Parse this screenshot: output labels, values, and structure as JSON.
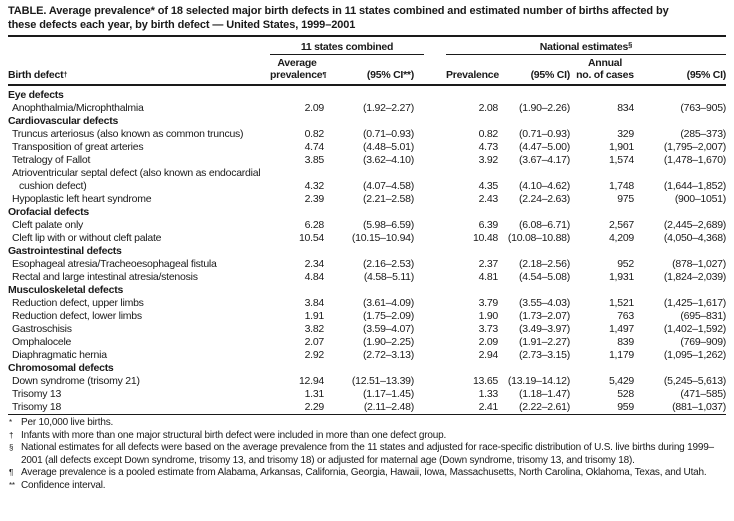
{
  "title_lines": [
    "TABLE. Average prevalence* of 18 selected major birth defects in 11 states combined and estimated number of births affected by",
    "these defects each year, by birth defect — United States, 1999–2001"
  ],
  "header": {
    "group_11_states": {
      "label": "11 states combined"
    },
    "group_national": {
      "label": "National estimates",
      "sup": "§"
    },
    "birth_defect": {
      "label": "Birth defect",
      "sup": "†"
    },
    "avg_prevalence": {
      "line1": "Average",
      "line2": "prevalence",
      "sup": "¶"
    },
    "avg_ci": "(95% CI**)",
    "prevalence": "Prevalence",
    "nat_ci": "(95% CI)",
    "annual_cases": {
      "line1": "Annual",
      "line2": "no. of cases"
    },
    "annual_ci": "(95% CI)"
  },
  "table": {
    "sections": [
      {
        "name": "Eye defects",
        "rows": [
          {
            "birth_defect": "Anophthalmia/Microphthalmia",
            "avg_prevalence": "2.09",
            "avg_ci": "(1.92–2.27)",
            "nat_prevalence": "2.08",
            "nat_ci": "(1.90–2.26)",
            "annual_cases": "834",
            "annual_ci": "(763–905)"
          }
        ]
      },
      {
        "name": "Cardiovascular defects",
        "rows": [
          {
            "birth_defect": "Truncus arteriosus (also known as common truncus)",
            "avg_prevalence": "0.82",
            "avg_ci": "(0.71–0.93)",
            "nat_prevalence": "0.82",
            "nat_ci": "(0.71–0.93)",
            "annual_cases": "329",
            "annual_ci": "(285–373)"
          },
          {
            "birth_defect": "Transposition of great arteries",
            "avg_prevalence": "4.74",
            "avg_ci": "(4.48–5.01)",
            "nat_prevalence": "4.73",
            "nat_ci": "(4.47–5.00)",
            "annual_cases": "1,901",
            "annual_ci": "(1,795–2,007)"
          },
          {
            "birth_defect": "Tetralogy of Fallot",
            "avg_prevalence": "3.85",
            "avg_ci": "(3.62–4.10)",
            "nat_prevalence": "3.92",
            "nat_ci": "(3.67–4.17)",
            "annual_cases": "1,574",
            "annual_ci": "(1,478–1,670)"
          },
          {
            "birth_defect": "Atrioventricular septal defect (also known as endocardial cushion defect)",
            "avg_prevalence": "4.32",
            "avg_ci": "(4.07–4.58)",
            "nat_prevalence": "4.35",
            "nat_ci": "(4.10–4.62)",
            "annual_cases": "1,748",
            "annual_ci": "(1,644–1,852)"
          },
          {
            "birth_defect": "Hypoplastic left heart syndrome",
            "avg_prevalence": "2.39",
            "avg_ci": "(2.21–2.58)",
            "nat_prevalence": "2.43",
            "nat_ci": "(2.24–2.63)",
            "annual_cases": "975",
            "annual_ci": "(900–1051)"
          }
        ]
      },
      {
        "name": "Orofacial defects",
        "rows": [
          {
            "birth_defect": "Cleft palate only",
            "avg_prevalence": "6.28",
            "avg_ci": "(5.98–6.59)",
            "nat_prevalence": "6.39",
            "nat_ci": "(6.08–6.71)",
            "annual_cases": "2,567",
            "annual_ci": "(2,445–2,689)"
          },
          {
            "birth_defect": "Cleft lip with or without cleft palate",
            "avg_prevalence": "10.54",
            "avg_ci": "(10.15–10.94)",
            "nat_prevalence": "10.48",
            "nat_ci": "(10.08–10.88)",
            "annual_cases": "4,209",
            "annual_ci": "(4,050–4,368)"
          }
        ]
      },
      {
        "name": "Gastrointestinal defects",
        "rows": [
          {
            "birth_defect": "Esophageal atresia/Tracheoesophageal fistula",
            "avg_prevalence": "2.34",
            "avg_ci": "(2.16–2.53)",
            "nat_prevalence": "2.37",
            "nat_ci": "(2.18–2.56)",
            "annual_cases": "952",
            "annual_ci": "(878–1,027)"
          },
          {
            "birth_defect": "Rectal and large intestinal atresia/stenosis",
            "avg_prevalence": "4.84",
            "avg_ci": "(4.58–5.11)",
            "nat_prevalence": "4.81",
            "nat_ci": "(4.54–5.08)",
            "annual_cases": "1,931",
            "annual_ci": "(1,824–2,039)"
          }
        ]
      },
      {
        "name": "Musculoskeletal defects",
        "rows": [
          {
            "birth_defect": "Reduction defect, upper limbs",
            "avg_prevalence": "3.84",
            "avg_ci": "(3.61–4.09)",
            "nat_prevalence": "3.79",
            "nat_ci": "(3.55–4.03)",
            "annual_cases": "1,521",
            "annual_ci": "(1,425–1,617)"
          },
          {
            "birth_defect": "Reduction defect, lower limbs",
            "avg_prevalence": "1.91",
            "avg_ci": "(1.75–2.09)",
            "nat_prevalence": "1.90",
            "nat_ci": "(1.73–2.07)",
            "annual_cases": "763",
            "annual_ci": "(695–831)"
          },
          {
            "birth_defect": "Gastroschisis",
            "avg_prevalence": "3.82",
            "avg_ci": "(3.59–4.07)",
            "nat_prevalence": "3.73",
            "nat_ci": "(3.49–3.97)",
            "annual_cases": "1,497",
            "annual_ci": "(1,402–1,592)"
          },
          {
            "birth_defect": "Omphalocele",
            "avg_prevalence": "2.07",
            "avg_ci": "(1.90–2.25)",
            "nat_prevalence": "2.09",
            "nat_ci": "(1.91–2.27)",
            "annual_cases": "839",
            "annual_ci": "(769–909)"
          },
          {
            "birth_defect": "Diaphragmatic hernia",
            "avg_prevalence": "2.92",
            "avg_ci": "(2.72–3.13)",
            "nat_prevalence": "2.94",
            "nat_ci": "(2.73–3.15)",
            "annual_cases": "1,179",
            "annual_ci": "(1,095–1,262)"
          }
        ]
      },
      {
        "name": "Chromosomal defects",
        "rows": [
          {
            "birth_defect": "Down syndrome (trisomy 21)",
            "avg_prevalence": "12.94",
            "avg_ci": "(12.51–13.39)",
            "nat_prevalence": "13.65",
            "nat_ci": "(13.19–14.12)",
            "annual_cases": "5,429",
            "annual_ci": "(5,245–5,613)"
          },
          {
            "birth_defect": "Trisomy 13",
            "avg_prevalence": "1.31",
            "avg_ci": "(1.17–1.45)",
            "nat_prevalence": "1.33",
            "nat_ci": "(1.18–1.47)",
            "annual_cases": "528",
            "annual_ci": "(471–585)"
          },
          {
            "birth_defect": "Trisomy 18",
            "avg_prevalence": "2.29",
            "avg_ci": "(2.11–2.48)",
            "nat_prevalence": "2.41",
            "nat_ci": "(2.22–2.61)",
            "annual_cases": "959",
            "annual_ci": "(881–1,037)"
          }
        ]
      }
    ]
  },
  "footnotes": [
    {
      "symbol": "*",
      "text": "Per 10,000 live births."
    },
    {
      "symbol": "†",
      "text": "Infants with more than one major structural birth defect were included in more than one defect group."
    },
    {
      "symbol": "§",
      "text": "National estimates for all defects were based on the average prevalence from the 11 states and adjusted for race-specific distribution of U.S. live births during 1999–2001 (all defects except Down syndrome, trisomy 13, and trisomy 18) or adjusted for maternal age (Down syndrome, trisomy 13, and trisomy 18)."
    },
    {
      "symbol": "¶",
      "text": "Average prevalence is a pooled estimate from Alabama, Arkansas, California, Georgia, Hawaii, Iowa, Massachusetts, North Carolina, Oklahoma, Texas, and Utah."
    },
    {
      "symbol": "**",
      "text": "Confidence interval."
    }
  ],
  "colors": {
    "text": "#1a1a1a",
    "rule": "#1a1a1a",
    "background": "#ffffff"
  }
}
